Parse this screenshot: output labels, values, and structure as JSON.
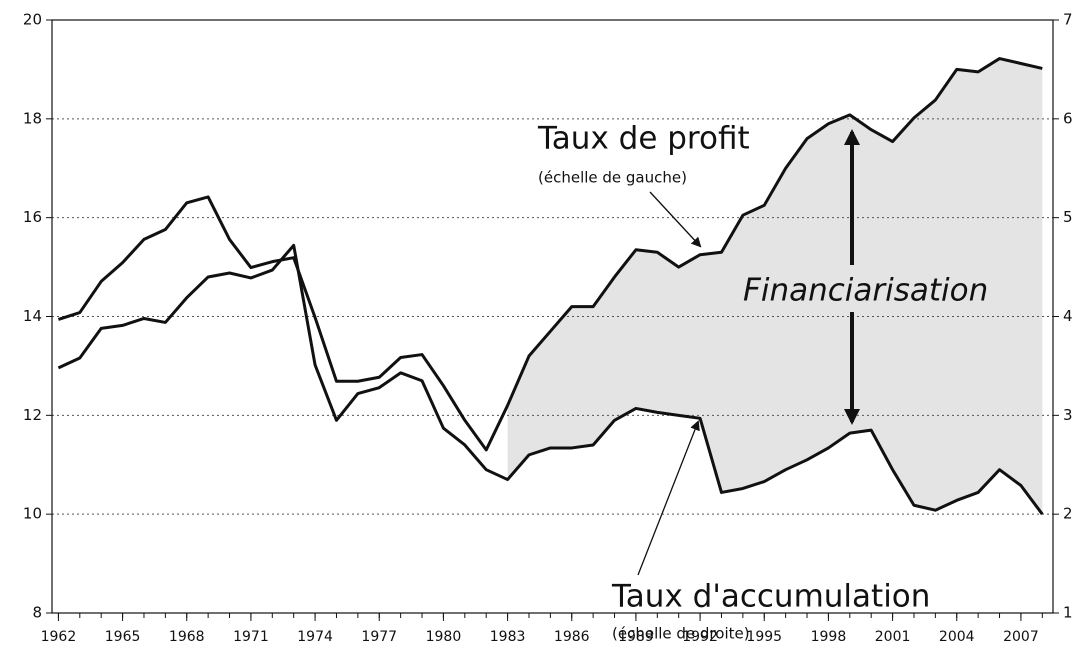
{
  "chart_data": {
    "type": "line",
    "x": [
      1962,
      1963,
      1964,
      1965,
      1966,
      1967,
      1968,
      1969,
      1970,
      1971,
      1972,
      1973,
      1974,
      1975,
      1976,
      1977,
      1978,
      1979,
      1980,
      1981,
      1982,
      1983,
      1984,
      1985,
      1986,
      1987,
      1988,
      1989,
      1990,
      1991,
      1992,
      1993,
      1994,
      1995,
      1996,
      1997,
      1998,
      1999,
      2000,
      2001,
      2002,
      2003,
      2004,
      2005,
      2006,
      2007,
      2008
    ],
    "series": [
      {
        "name": "Taux de profit",
        "color": "#111111",
        "axis": "y",
        "values": [
          13.94,
          14.08,
          14.71,
          15.09,
          15.56,
          15.76,
          16.3,
          16.42,
          15.56,
          14.99,
          15.11,
          15.19,
          13.98,
          12.69,
          12.69,
          12.77,
          13.17,
          13.23,
          12.6,
          11.9,
          11.3,
          12.2,
          13.2,
          13.7,
          14.2,
          14.2,
          14.8,
          15.35,
          15.3,
          15.0,
          15.25,
          15.3,
          16.05,
          16.25,
          17.0,
          17.6,
          17.9,
          18.08,
          17.78,
          17.54,
          18.02,
          18.38,
          19.0,
          18.95,
          19.22,
          19.12,
          19.02
        ]
      },
      {
        "name": "Taux d'accumulation",
        "color": "#111111",
        "axis": "y2",
        "values": [
          3.48,
          3.58,
          3.88,
          3.91,
          3.98,
          3.94,
          4.19,
          4.4,
          4.44,
          4.39,
          4.47,
          4.72,
          3.51,
          2.95,
          3.22,
          3.28,
          3.43,
          3.35,
          2.87,
          2.7,
          2.45,
          2.35,
          2.6,
          2.67,
          2.67,
          2.7,
          2.95,
          3.07,
          3.03,
          3.0,
          2.97,
          2.22,
          2.26,
          2.33,
          2.45,
          2.55,
          2.67,
          2.82,
          2.85,
          2.45,
          2.09,
          2.04,
          2.14,
          2.22,
          2.45,
          2.29,
          2.0
        ]
      }
    ],
    "annotations": [
      "(échelle de gauche)",
      "Financiarisation",
      "(échelle de droite)"
    ],
    "xlim": [
      1961.7,
      2008.5
    ],
    "xticks": [
      1962,
      1965,
      1968,
      1971,
      1974,
      1977,
      1980,
      1983,
      1986,
      1989,
      1992,
      1995,
      1998,
      2001,
      2004,
      2007
    ],
    "ylim": [
      8,
      20
    ],
    "yticks": [
      8,
      10,
      12,
      14,
      16,
      18,
      20
    ],
    "y2lim": [
      1,
      7
    ],
    "y2ticks": [
      1,
      2,
      3,
      4,
      5,
      6,
      7
    ],
    "grid": true
  }
}
